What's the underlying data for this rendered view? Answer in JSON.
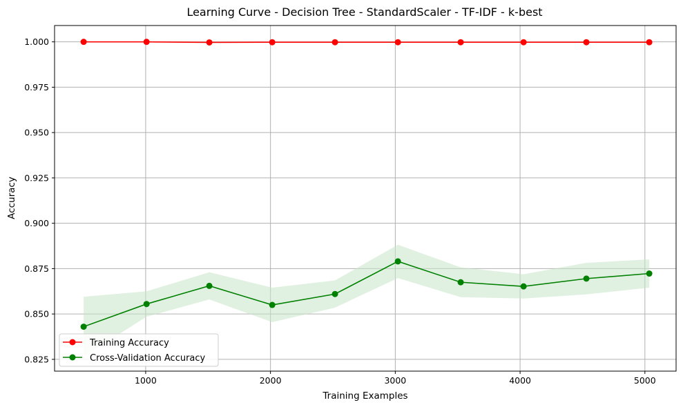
{
  "chart_data": {
    "type": "line",
    "title": "Learning Curve - Decision Tree - StandardScaler - TF-IDF - k-best",
    "xlabel": "Training Examples",
    "ylabel": "Accuracy",
    "xlim": [
      270,
      5250
    ],
    "ylim": [
      0.8185,
      1.009
    ],
    "grid": true,
    "legend_position": "lower-left",
    "x": [
      503,
      1007,
      1510,
      2014,
      2517,
      3021,
      3524,
      4028,
      4531,
      5035
    ],
    "xticks": [
      1000,
      2000,
      3000,
      4000,
      5000
    ],
    "xtick_labels": [
      "1000",
      "2000",
      "3000",
      "4000",
      "5000"
    ],
    "yticks": [
      0.825,
      0.85,
      0.875,
      0.9,
      0.925,
      0.95,
      0.975,
      1.0
    ],
    "ytick_labels": [
      "0.825",
      "0.850",
      "0.875",
      "0.900",
      "0.925",
      "0.950",
      "0.975",
      "1.000"
    ],
    "series": [
      {
        "name": "Training Accuracy",
        "color": "#ff0000",
        "values": [
          1.0,
          1.0,
          0.9997,
          0.9998,
          0.9998,
          0.9998,
          0.9998,
          0.9998,
          0.9998,
          0.9998
        ],
        "band_lower": [
          1.0,
          1.0,
          0.9993,
          0.9995,
          0.9996,
          0.9996,
          0.9996,
          0.9996,
          0.9996,
          0.9996
        ],
        "band_upper": [
          1.0,
          1.0,
          1.0,
          1.0,
          1.0,
          1.0,
          1.0,
          1.0,
          1.0,
          1.0
        ]
      },
      {
        "name": "Cross-Validation Accuracy",
        "color": "#008000",
        "band_color": "#c8e6c8",
        "values": [
          0.843,
          0.8555,
          0.8655,
          0.855,
          0.861,
          0.879,
          0.8675,
          0.8652,
          0.8695,
          0.8723
        ],
        "band_lower": [
          0.8265,
          0.8485,
          0.858,
          0.8455,
          0.8535,
          0.8698,
          0.8593,
          0.8585,
          0.8608,
          0.8645
        ],
        "band_upper": [
          0.8595,
          0.8625,
          0.873,
          0.8645,
          0.8685,
          0.8882,
          0.8757,
          0.8719,
          0.8782,
          0.8801
        ]
      }
    ]
  }
}
